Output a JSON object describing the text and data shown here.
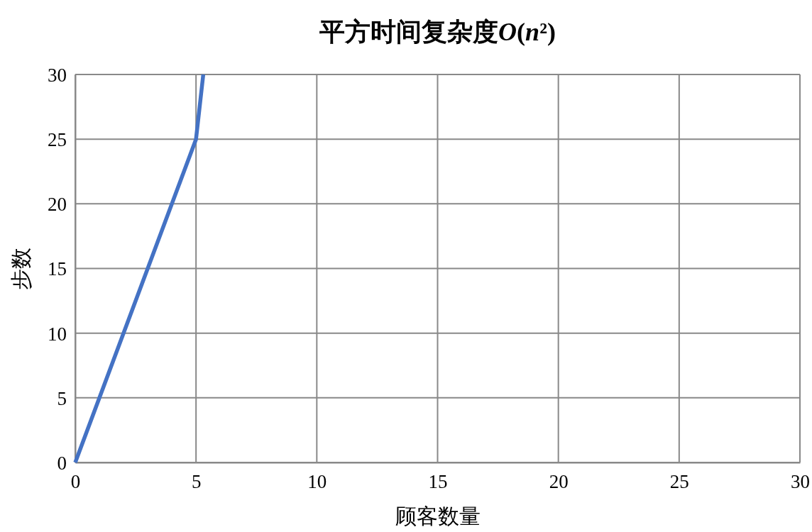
{
  "chart_data": {
    "type": "line",
    "title": "平方时间复杂度O(n²)",
    "xlabel": "顾客数量",
    "ylabel": "步数",
    "x": [
      0,
      5,
      5.3
    ],
    "series": [
      {
        "color": "#4472c4",
        "values": [
          0,
          25,
          30
        ]
      }
    ],
    "xlim": [
      0,
      30
    ],
    "xticks": [
      0,
      5,
      10,
      15,
      20,
      25,
      30
    ],
    "ylim": [
      0,
      30
    ],
    "yticks": [
      0,
      5,
      10,
      15,
      20,
      25,
      30
    ],
    "grid": true,
    "marker": "none",
    "line_style": "solid"
  }
}
